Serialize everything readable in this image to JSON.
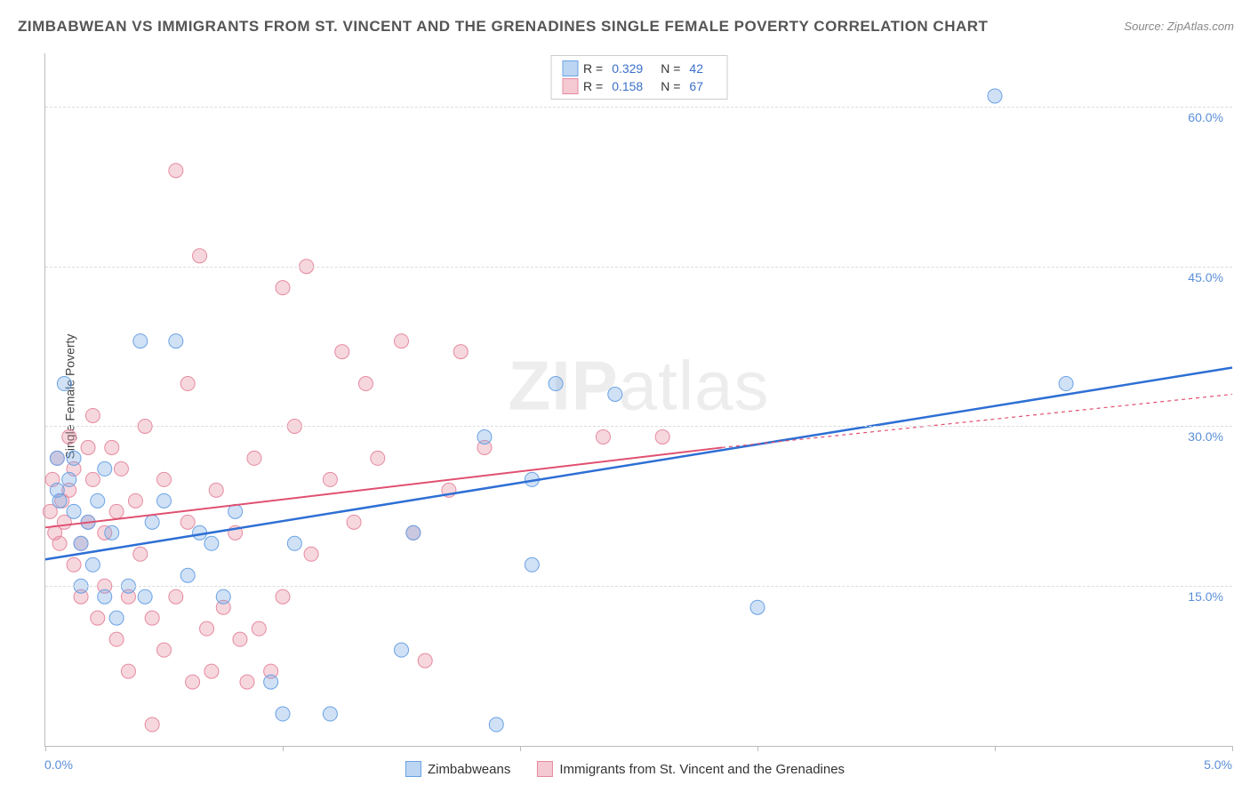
{
  "title": "ZIMBABWEAN VS IMMIGRANTS FROM ST. VINCENT AND THE GRENADINES SINGLE FEMALE POVERTY CORRELATION CHART",
  "source_label": "Source:",
  "source_value": "ZipAtlas.com",
  "ylabel": "Single Female Poverty",
  "watermark_bold": "ZIP",
  "watermark_thin": "atlas",
  "chart": {
    "type": "scatter",
    "xlim": [
      0,
      5.0
    ],
    "ylim": [
      0,
      65
    ],
    "ytick_values": [
      15.0,
      30.0,
      45.0,
      60.0
    ],
    "ytick_labels": [
      "15.0%",
      "30.0%",
      "45.0%",
      "60.0%"
    ],
    "xtick_values": [
      0,
      1,
      2,
      3,
      4,
      5
    ],
    "xaxis_min_label": "0.0%",
    "xaxis_max_label": "5.0%",
    "background_color": "#ffffff",
    "grid_color": "#dddddd",
    "series": [
      {
        "name": "Zimbabweans",
        "swatch_fill": "#bcd5f2",
        "swatch_border": "#6aa2e4",
        "point_fill": "rgba(120,170,230,0.35)",
        "point_stroke": "#6aa2e4",
        "line_color": "#2e6fd4",
        "line_width": 2.5,
        "line_dash": "none",
        "R": 0.329,
        "N": 42,
        "trend": {
          "x1": 0,
          "y1": 17.5,
          "x2": 5.0,
          "y2": 35.5
        },
        "points": [
          {
            "x": 0.05,
            "y": 27
          },
          {
            "x": 0.05,
            "y": 24
          },
          {
            "x": 0.08,
            "y": 34
          },
          {
            "x": 0.12,
            "y": 22
          },
          {
            "x": 0.12,
            "y": 27
          },
          {
            "x": 0.15,
            "y": 19
          },
          {
            "x": 0.15,
            "y": 15
          },
          {
            "x": 0.18,
            "y": 21
          },
          {
            "x": 0.2,
            "y": 17
          },
          {
            "x": 0.22,
            "y": 23
          },
          {
            "x": 0.25,
            "y": 26
          },
          {
            "x": 0.25,
            "y": 14
          },
          {
            "x": 0.28,
            "y": 20
          },
          {
            "x": 0.3,
            "y": 12
          },
          {
            "x": 0.35,
            "y": 15
          },
          {
            "x": 0.4,
            "y": 38
          },
          {
            "x": 0.42,
            "y": 14
          },
          {
            "x": 0.45,
            "y": 21
          },
          {
            "x": 0.55,
            "y": 38
          },
          {
            "x": 0.6,
            "y": 16
          },
          {
            "x": 0.65,
            "y": 20
          },
          {
            "x": 0.7,
            "y": 19
          },
          {
            "x": 0.75,
            "y": 14
          },
          {
            "x": 0.95,
            "y": 6
          },
          {
            "x": 1.0,
            "y": 3
          },
          {
            "x": 1.05,
            "y": 19
          },
          {
            "x": 1.2,
            "y": 3
          },
          {
            "x": 1.5,
            "y": 9
          },
          {
            "x": 1.55,
            "y": 20
          },
          {
            "x": 1.85,
            "y": 29
          },
          {
            "x": 1.9,
            "y": 2
          },
          {
            "x": 2.05,
            "y": 17
          },
          {
            "x": 2.05,
            "y": 25
          },
          {
            "x": 2.15,
            "y": 34
          },
          {
            "x": 2.4,
            "y": 33
          },
          {
            "x": 3.0,
            "y": 13
          },
          {
            "x": 4.0,
            "y": 61
          },
          {
            "x": 4.3,
            "y": 34
          },
          {
            "x": 0.5,
            "y": 23
          },
          {
            "x": 0.8,
            "y": 22
          },
          {
            "x": 0.1,
            "y": 25
          },
          {
            "x": 0.06,
            "y": 23
          }
        ]
      },
      {
        "name": "Immigrants from St. Vincent and the Grenadines",
        "swatch_fill": "#f5c9d2",
        "swatch_border": "#e68aa0",
        "point_fill": "rgba(230,140,160,0.35)",
        "point_stroke": "#e68aa0",
        "line_color": "#e05070",
        "line_width": 2,
        "line_dash": "4,4",
        "R": 0.158,
        "N": 67,
        "trend_solid": {
          "x1": 0,
          "y1": 20.5,
          "x2": 2.85,
          "y2": 28
        },
        "trend_dashed": {
          "x1": 2.85,
          "y1": 28,
          "x2": 5.0,
          "y2": 33
        },
        "points": [
          {
            "x": 0.02,
            "y": 22
          },
          {
            "x": 0.03,
            "y": 25
          },
          {
            "x": 0.04,
            "y": 20
          },
          {
            "x": 0.05,
            "y": 27
          },
          {
            "x": 0.06,
            "y": 19
          },
          {
            "x": 0.07,
            "y": 23
          },
          {
            "x": 0.08,
            "y": 21
          },
          {
            "x": 0.1,
            "y": 24
          },
          {
            "x": 0.1,
            "y": 29
          },
          {
            "x": 0.12,
            "y": 17
          },
          {
            "x": 0.12,
            "y": 26
          },
          {
            "x": 0.15,
            "y": 19
          },
          {
            "x": 0.15,
            "y": 14
          },
          {
            "x": 0.18,
            "y": 28
          },
          {
            "x": 0.18,
            "y": 21
          },
          {
            "x": 0.2,
            "y": 31
          },
          {
            "x": 0.2,
            "y": 25
          },
          {
            "x": 0.22,
            "y": 12
          },
          {
            "x": 0.25,
            "y": 20
          },
          {
            "x": 0.25,
            "y": 15
          },
          {
            "x": 0.28,
            "y": 28
          },
          {
            "x": 0.3,
            "y": 10
          },
          {
            "x": 0.3,
            "y": 22
          },
          {
            "x": 0.32,
            "y": 26
          },
          {
            "x": 0.35,
            "y": 14
          },
          {
            "x": 0.35,
            "y": 7
          },
          {
            "x": 0.38,
            "y": 23
          },
          {
            "x": 0.4,
            "y": 18
          },
          {
            "x": 0.42,
            "y": 30
          },
          {
            "x": 0.45,
            "y": 12
          },
          {
            "x": 0.45,
            "y": 2
          },
          {
            "x": 0.5,
            "y": 25
          },
          {
            "x": 0.5,
            "y": 9
          },
          {
            "x": 0.55,
            "y": 54
          },
          {
            "x": 0.55,
            "y": 14
          },
          {
            "x": 0.6,
            "y": 21
          },
          {
            "x": 0.6,
            "y": 34
          },
          {
            "x": 0.62,
            "y": 6
          },
          {
            "x": 0.65,
            "y": 46
          },
          {
            "x": 0.68,
            "y": 11
          },
          {
            "x": 0.7,
            "y": 7
          },
          {
            "x": 0.72,
            "y": 24
          },
          {
            "x": 0.75,
            "y": 13
          },
          {
            "x": 0.8,
            "y": 20
          },
          {
            "x": 0.82,
            "y": 10
          },
          {
            "x": 0.85,
            "y": 6
          },
          {
            "x": 0.88,
            "y": 27
          },
          {
            "x": 0.9,
            "y": 11
          },
          {
            "x": 0.95,
            "y": 7
          },
          {
            "x": 1.0,
            "y": 43
          },
          {
            "x": 1.0,
            "y": 14
          },
          {
            "x": 1.05,
            "y": 30
          },
          {
            "x": 1.1,
            "y": 45
          },
          {
            "x": 1.12,
            "y": 18
          },
          {
            "x": 1.2,
            "y": 25
          },
          {
            "x": 1.25,
            "y": 37
          },
          {
            "x": 1.3,
            "y": 21
          },
          {
            "x": 1.35,
            "y": 34
          },
          {
            "x": 1.4,
            "y": 27
          },
          {
            "x": 1.5,
            "y": 38
          },
          {
            "x": 1.55,
            "y": 20
          },
          {
            "x": 1.6,
            "y": 8
          },
          {
            "x": 1.7,
            "y": 24
          },
          {
            "x": 1.75,
            "y": 37
          },
          {
            "x": 1.85,
            "y": 28
          },
          {
            "x": 2.35,
            "y": 29
          },
          {
            "x": 2.6,
            "y": 29
          }
        ]
      }
    ]
  },
  "legend_top": {
    "r_label": "R =",
    "n_label": "N ="
  }
}
